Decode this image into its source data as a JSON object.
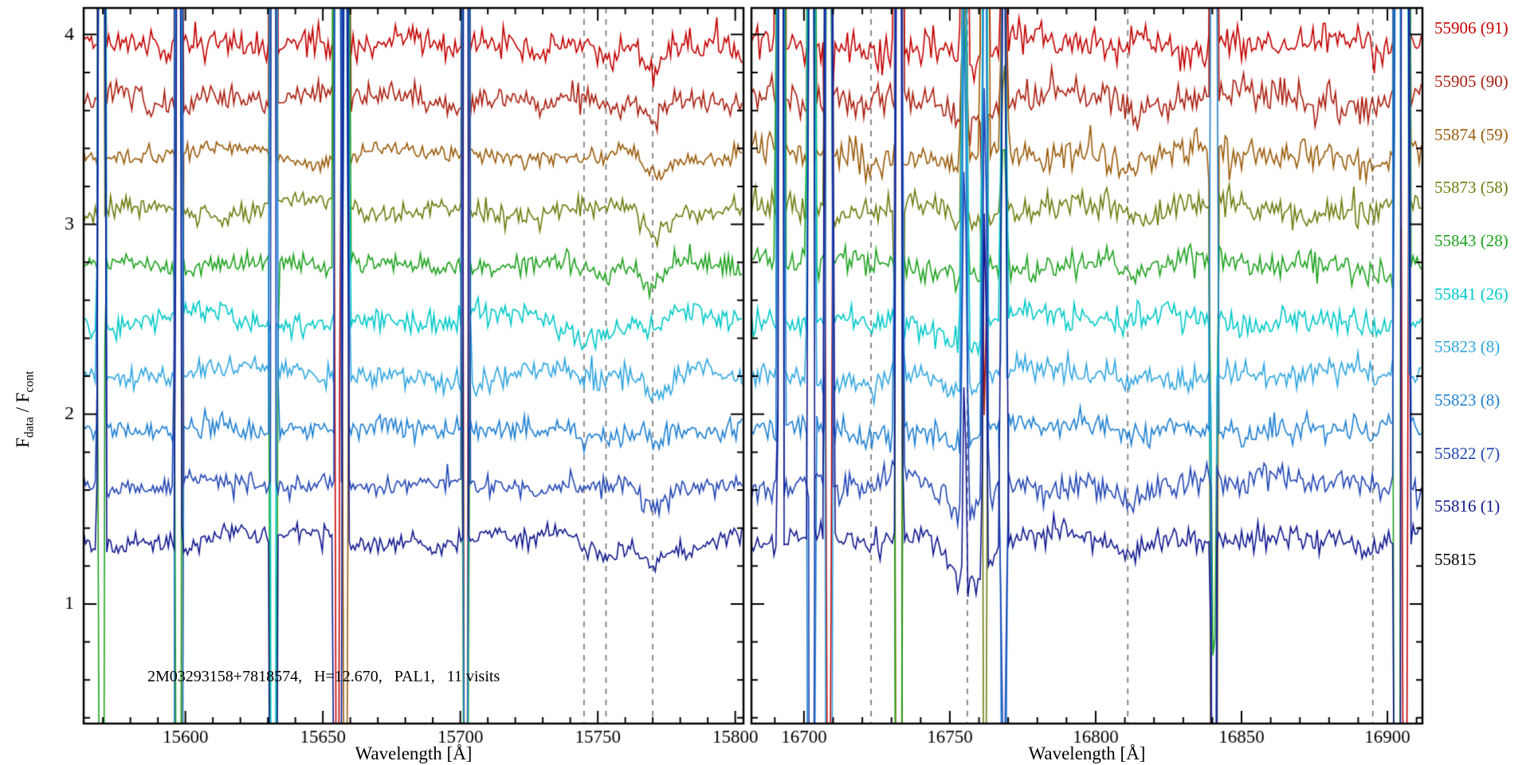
{
  "figure": {
    "ylabel_parts": {
      "f1": "F",
      "sub1": "data",
      "mid": " / F",
      "sub2": "cont"
    }
  },
  "chart_data": {
    "type": "line",
    "xlabel": "Wavelength [Å]",
    "ylabel": "F_data / F_cont",
    "annotation": "2M03293158+7818574,   H=12.670,   PAL1,   11 visits",
    "ylim": [
      0.37,
      4.14
    ],
    "yticks": [
      1,
      2,
      3,
      4
    ],
    "y_minor_step": 0.2,
    "x_minor_step": 10,
    "grid": false,
    "legend_position": "right",
    "panels": [
      {
        "xlim": [
          15563,
          15803
        ],
        "xticks": [
          15600,
          15650,
          15700,
          15750,
          15800
        ],
        "dashed_lines": [
          15745,
          15753,
          15770
        ],
        "sky_lines": [
          {
            "x": 15569.5,
            "amp": 14,
            "dir": 0
          },
          {
            "x": 15597.5,
            "amp": 14,
            "dir": 0
          },
          {
            "x": 15632.0,
            "amp": 14,
            "dir": 0
          },
          {
            "x": 15655.3,
            "amp": 14,
            "dir": 0
          },
          {
            "x": 15658.2,
            "amp": 9,
            "dir": 0
          },
          {
            "x": 15702.0,
            "amp": 13,
            "dir": 0
          }
        ],
        "absorption_features": [
          {
            "x": 15745,
            "depth": 0.05,
            "sigma": 2.5
          },
          {
            "x": 15753,
            "depth": 0.06,
            "sigma": 3.0
          },
          {
            "x": 15770,
            "depth": 0.09,
            "sigma": 4.0
          }
        ],
        "noise_sigma": 0.028
      },
      {
        "xlim": [
          16682,
          16912
        ],
        "xticks": [
          16700,
          16750,
          16800,
          16850,
          16900
        ],
        "dashed_lines": [
          16723,
          16756,
          16811,
          16895
        ],
        "sky_lines": [
          {
            "x": 16692.0,
            "amp": 15,
            "dir": 0
          },
          {
            "x": 16702.5,
            "amp": 10,
            "dir": 0
          },
          {
            "x": 16708.5,
            "amp": 15,
            "dir": 0
          },
          {
            "x": 16732.5,
            "amp": 15,
            "dir": 0
          },
          {
            "x": 16755.0,
            "amp": 3,
            "dir": 0
          },
          {
            "x": 16762.0,
            "amp": 4,
            "dir": 0
          },
          {
            "x": 16768.5,
            "amp": 3,
            "dir": 0
          },
          {
            "x": 16840.5,
            "amp": 9,
            "dir": -1
          },
          {
            "x": 16903.5,
            "amp": 16,
            "dir": 0
          },
          {
            "x": 16906.0,
            "amp": 16,
            "dir": 0
          }
        ],
        "absorption_features": [
          {
            "x": 16723,
            "depth": 0.04,
            "sigma": 3.0
          },
          {
            "x": 16756,
            "depth": 0.1,
            "sigma": 5.0
          },
          {
            "x": 16811,
            "depth": 0.04,
            "sigma": 3.0
          },
          {
            "x": 16895,
            "depth": 0.04,
            "sigma": 3.0
          }
        ],
        "noise_sigma": 0.042
      }
    ],
    "series": [
      {
        "label": "55906 (91)",
        "color": "#c40000",
        "offset": 3.95
      },
      {
        "label": "55905 (90)",
        "color": "#aa1e0f",
        "offset": 3.66
      },
      {
        "label": "55874 (59)",
        "color": "#9a5b0a",
        "offset": 3.37
      },
      {
        "label": "55873 (58)",
        "color": "#6e7b0e",
        "offset": 3.08
      },
      {
        "label": "55843 (28)",
        "color": "#1ea21e",
        "offset": 2.79
      },
      {
        "label": "55841 (26)",
        "color": "#00c8c8",
        "offset": 2.5
      },
      {
        "label": "55823 (8)",
        "color": "#2fa6e0",
        "offset": 2.21
      },
      {
        "label": "55823 (8)",
        "color": "#1d7fd2",
        "offset": 1.92
      },
      {
        "label": "55822 (7)",
        "color": "#2246b4",
        "offset": 1.63
      },
      {
        "label": "55816 (1)",
        "color": "#10188e",
        "offset": 1.34
      },
      {
        "label": "55815",
        "color": "#000000",
        "offset": null
      }
    ]
  }
}
